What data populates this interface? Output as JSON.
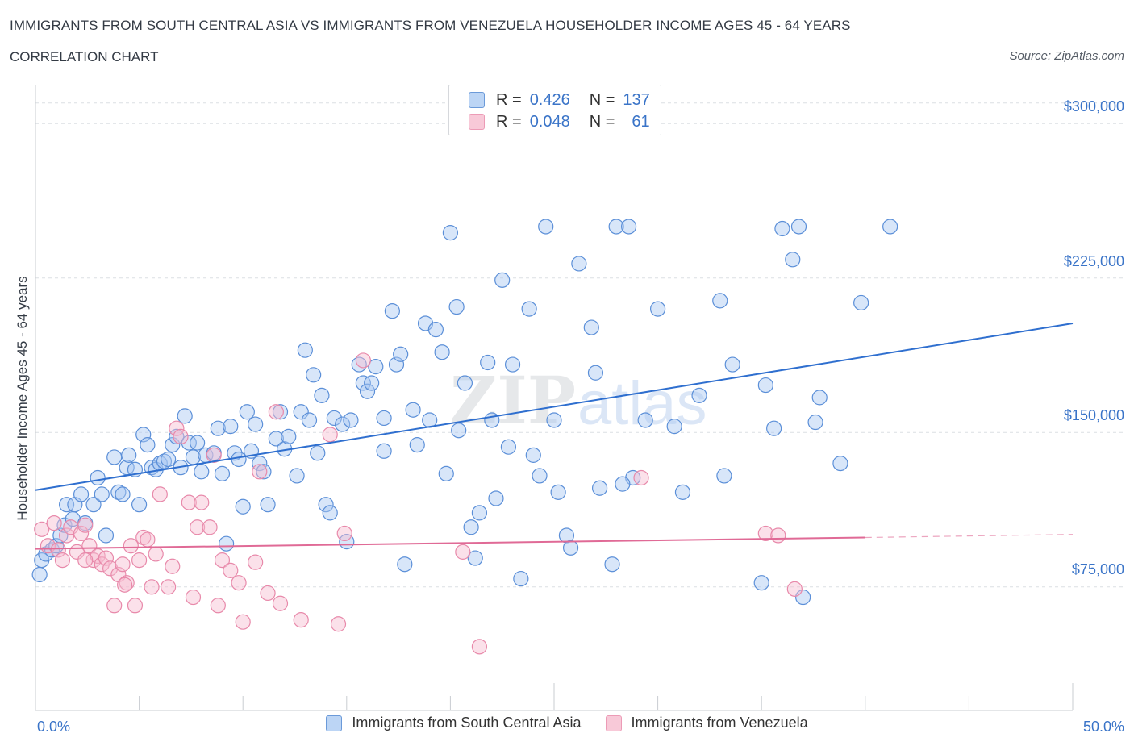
{
  "header": {
    "title": "IMMIGRANTS FROM SOUTH CENTRAL ASIA VS IMMIGRANTS FROM VENEZUELA HOUSEHOLDER INCOME AGES 45 - 64 YEARS",
    "subtitle": "CORRELATION CHART",
    "source": "Source: ZipAtlas.com"
  },
  "legend": {
    "r_label": "R =",
    "n_label": "N =",
    "series1": {
      "r": "0.426",
      "n": "137"
    },
    "series2": {
      "r": "0.048",
      "n": "61"
    }
  },
  "colors": {
    "blue_fill": "#a9c8f2",
    "blue_stroke": "#5b8fd8",
    "blue_line": "#2f6fcf",
    "pink_fill": "#f6bcd0",
    "pink_stroke": "#e889aa",
    "pink_line": "#e06a96",
    "axis_text": "#3a74c8",
    "grid": "#dcdfe4"
  },
  "watermark": {
    "zip": "ZIP",
    "atlas": "atlas"
  },
  "chart_data": {
    "type": "scatter",
    "title": "IMMIGRANTS FROM SOUTH CENTRAL ASIA VS IMMIGRANTS FROM VENEZUELA HOUSEHOLDER INCOME AGES 45 - 64 YEARS",
    "xlabel": "",
    "ylabel": "Householder Income Ages 45 - 64 years",
    "xlim": [
      0,
      50
    ],
    "ylim": [
      15000,
      315000
    ],
    "x_tick_labels": [
      "0.0%",
      "50.0%"
    ],
    "y_ticks": [
      75000,
      150000,
      225000,
      300000
    ],
    "y_tick_labels": [
      "$75,000",
      "$150,000",
      "$225,000",
      "$300,000"
    ],
    "grid": true,
    "legend_position": "bottom-center",
    "series": [
      {
        "name": "Immigrants from South Central Asia",
        "R": 0.426,
        "N": 137,
        "trend": {
          "x": [
            0,
            50
          ],
          "y": [
            122000,
            203000
          ]
        },
        "points": [
          [
            0.2,
            81000
          ],
          [
            0.3,
            88000
          ],
          [
            0.5,
            91000
          ],
          [
            0.8,
            93000
          ],
          [
            1.0,
            95000
          ],
          [
            1.2,
            100000
          ],
          [
            1.4,
            105000
          ],
          [
            1.5,
            115000
          ],
          [
            1.8,
            108000
          ],
          [
            1.9,
            115000
          ],
          [
            2.2,
            120000
          ],
          [
            2.4,
            106000
          ],
          [
            2.8,
            115000
          ],
          [
            3.0,
            128000
          ],
          [
            3.2,
            120000
          ],
          [
            3.4,
            100000
          ],
          [
            3.8,
            138000
          ],
          [
            4.0,
            121000
          ],
          [
            4.2,
            120000
          ],
          [
            4.4,
            133000
          ],
          [
            4.5,
            139000
          ],
          [
            4.8,
            132000
          ],
          [
            5.0,
            115000
          ],
          [
            5.2,
            149000
          ],
          [
            5.4,
            144000
          ],
          [
            5.6,
            133000
          ],
          [
            5.8,
            132000
          ],
          [
            6.0,
            135000
          ],
          [
            6.2,
            136000
          ],
          [
            6.4,
            137000
          ],
          [
            6.6,
            144000
          ],
          [
            6.8,
            148000
          ],
          [
            7.0,
            133000
          ],
          [
            7.2,
            158000
          ],
          [
            7.4,
            145000
          ],
          [
            7.6,
            138000
          ],
          [
            7.8,
            145000
          ],
          [
            8.0,
            131000
          ],
          [
            8.2,
            139000
          ],
          [
            8.6,
            140000
          ],
          [
            8.8,
            152000
          ],
          [
            9.0,
            130000
          ],
          [
            9.4,
            153000
          ],
          [
            9.6,
            140000
          ],
          [
            9.8,
            137000
          ],
          [
            10.0,
            114000
          ],
          [
            10.2,
            160000
          ],
          [
            10.4,
            141000
          ],
          [
            10.6,
            154000
          ],
          [
            10.8,
            135000
          ],
          [
            11.0,
            131000
          ],
          [
            11.2,
            115000
          ],
          [
            11.6,
            147000
          ],
          [
            11.8,
            160000
          ],
          [
            12.0,
            142000
          ],
          [
            12.2,
            148000
          ],
          [
            12.6,
            129000
          ],
          [
            12.8,
            160000
          ],
          [
            13.0,
            190000
          ],
          [
            13.2,
            156000
          ],
          [
            13.4,
            178000
          ],
          [
            13.6,
            140000
          ],
          [
            13.8,
            168000
          ],
          [
            14.0,
            115000
          ],
          [
            14.2,
            111000
          ],
          [
            14.4,
            157000
          ],
          [
            14.8,
            154000
          ],
          [
            15.0,
            97000
          ],
          [
            15.2,
            156000
          ],
          [
            15.6,
            183000
          ],
          [
            15.8,
            174000
          ],
          [
            16.0,
            170000
          ],
          [
            16.2,
            174000
          ],
          [
            16.4,
            182000
          ],
          [
            16.8,
            141000
          ],
          [
            16.8,
            157000
          ],
          [
            17.2,
            209000
          ],
          [
            17.4,
            183000
          ],
          [
            17.6,
            188000
          ],
          [
            17.8,
            86000
          ],
          [
            18.2,
            161000
          ],
          [
            18.4,
            144000
          ],
          [
            18.8,
            203000
          ],
          [
            19.0,
            156000
          ],
          [
            19.3,
            200000
          ],
          [
            19.6,
            189000
          ],
          [
            19.8,
            130000
          ],
          [
            20.0,
            247000
          ],
          [
            20.3,
            211000
          ],
          [
            20.4,
            151000
          ],
          [
            20.7,
            174000
          ],
          [
            21.0,
            104000
          ],
          [
            21.2,
            89000
          ],
          [
            21.4,
            111000
          ],
          [
            21.8,
            184000
          ],
          [
            22.0,
            156000
          ],
          [
            22.2,
            118000
          ],
          [
            22.5,
            224000
          ],
          [
            22.8,
            143000
          ],
          [
            23.0,
            183000
          ],
          [
            23.4,
            79000
          ],
          [
            23.8,
            210000
          ],
          [
            24.0,
            139000
          ],
          [
            24.3,
            129000
          ],
          [
            24.6,
            250000
          ],
          [
            25.0,
            156000
          ],
          [
            25.2,
            121000
          ],
          [
            25.6,
            100000
          ],
          [
            25.8,
            94000
          ],
          [
            26.2,
            232000
          ],
          [
            26.8,
            201000
          ],
          [
            27.0,
            179000
          ],
          [
            27.2,
            123000
          ],
          [
            27.8,
            86000
          ],
          [
            28.0,
            250000
          ],
          [
            28.6,
            250000
          ],
          [
            28.8,
            128000
          ],
          [
            29.4,
            156000
          ],
          [
            30.0,
            210000
          ],
          [
            30.8,
            153000
          ],
          [
            32.0,
            168000
          ],
          [
            33.0,
            214000
          ],
          [
            33.2,
            129000
          ],
          [
            33.6,
            183000
          ],
          [
            35.2,
            173000
          ],
          [
            35.0,
            77000
          ],
          [
            35.6,
            152000
          ],
          [
            36.0,
            249000
          ],
          [
            36.5,
            234000
          ],
          [
            37.0,
            70000
          ],
          [
            37.6,
            155000
          ],
          [
            37.8,
            167000
          ],
          [
            38.8,
            135000
          ],
          [
            39.8,
            213000
          ],
          [
            41.2,
            250000
          ],
          [
            36.8,
            250000
          ],
          [
            31.2,
            121000
          ],
          [
            28.3,
            125000
          ],
          [
            9.2,
            96000
          ]
        ]
      },
      {
        "name": "Immigrants from Venezuela",
        "R": 0.048,
        "N": 61,
        "trend": {
          "x": [
            0,
            40
          ],
          "y": [
            93500,
            99000
          ]
        },
        "trend_dashed": {
          "x": [
            40,
            50
          ],
          "y": [
            99000,
            100500
          ]
        },
        "points": [
          [
            0.3,
            103000
          ],
          [
            0.6,
            95000
          ],
          [
            0.9,
            106000
          ],
          [
            1.1,
            93000
          ],
          [
            1.3,
            88000
          ],
          [
            1.5,
            100000
          ],
          [
            1.7,
            104000
          ],
          [
            2.0,
            92000
          ],
          [
            2.2,
            101000
          ],
          [
            2.4,
            105000
          ],
          [
            2.6,
            95000
          ],
          [
            2.8,
            88000
          ],
          [
            3.0,
            90000
          ],
          [
            3.2,
            86000
          ],
          [
            3.4,
            89000
          ],
          [
            3.6,
            84000
          ],
          [
            3.8,
            66000
          ],
          [
            4.0,
            81000
          ],
          [
            4.2,
            86000
          ],
          [
            4.4,
            77000
          ],
          [
            4.6,
            95000
          ],
          [
            4.8,
            66000
          ],
          [
            5.0,
            88000
          ],
          [
            5.2,
            99000
          ],
          [
            5.4,
            98000
          ],
          [
            5.6,
            75000
          ],
          [
            5.8,
            91000
          ],
          [
            6.0,
            120000
          ],
          [
            6.4,
            75000
          ],
          [
            6.6,
            85000
          ],
          [
            6.8,
            152000
          ],
          [
            7.0,
            148000
          ],
          [
            7.4,
            116000
          ],
          [
            7.6,
            70000
          ],
          [
            7.8,
            104000
          ],
          [
            8.0,
            116000
          ],
          [
            8.4,
            104000
          ],
          [
            8.6,
            139000
          ],
          [
            8.8,
            66000
          ],
          [
            9.0,
            88000
          ],
          [
            9.4,
            83000
          ],
          [
            9.8,
            77000
          ],
          [
            10.0,
            58000
          ],
          [
            10.6,
            87000
          ],
          [
            10.8,
            131000
          ],
          [
            11.2,
            72000
          ],
          [
            11.6,
            160000
          ],
          [
            11.8,
            67000
          ],
          [
            12.8,
            59000
          ],
          [
            14.2,
            149000
          ],
          [
            14.6,
            57000
          ],
          [
            14.9,
            101000
          ],
          [
            15.8,
            185000
          ],
          [
            20.6,
            92000
          ],
          [
            21.4,
            46000
          ],
          [
            29.2,
            128000
          ],
          [
            35.2,
            101000
          ],
          [
            35.8,
            100000
          ],
          [
            36.6,
            74000
          ],
          [
            2.4,
            88000
          ],
          [
            4.3,
            76000
          ]
        ]
      }
    ]
  },
  "axis": {
    "x_left": "0.0%",
    "x_right": "50.0%",
    "y_ticks": [
      "$300,000",
      "$225,000",
      "$150,000",
      "$75,000"
    ],
    "y_label": "Householder Income Ages 45 - 64 years"
  },
  "bottom_legend": {
    "series1": "Immigrants from South Central Asia",
    "series2": "Immigrants from Venezuela"
  }
}
